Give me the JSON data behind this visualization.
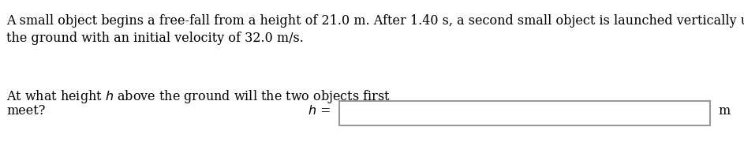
{
  "background_color": "#ffffff",
  "text_line1": "A small object begins a free-fall from a height of 21.0 m. After 1.40 s, a second small object is launched vertically upward from",
  "text_line2": "the ground with an initial velocity of 32.0 m/s.",
  "text_q_pre": "At what height ",
  "text_q_italic": "h",
  "text_q_post": " above the ground will the two objects first",
  "text_q2": "meet?",
  "text_heq_italic": "h",
  "text_heq_rest": " =",
  "text_unit": "m",
  "font_size": 11.5,
  "text_color": "#000000",
  "box_edge_color": "#999999",
  "fig_width": 9.43,
  "fig_height": 1.99,
  "dpi": 100
}
